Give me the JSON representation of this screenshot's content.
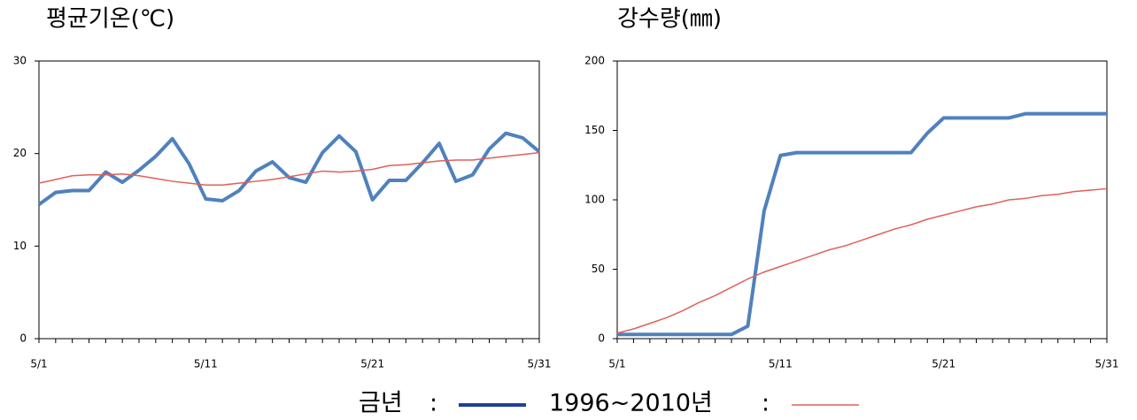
{
  "chart_data": [
    {
      "type": "line",
      "title": "평균기온(℃)",
      "categories": [
        "5/1",
        null,
        null,
        null,
        null,
        null,
        null,
        null,
        null,
        null,
        "5/11",
        null,
        null,
        null,
        null,
        null,
        null,
        null,
        null,
        null,
        "5/21",
        null,
        null,
        null,
        null,
        null,
        null,
        null,
        null,
        null,
        "5/31"
      ],
      "series": [
        {
          "name": "금년",
          "color": "#4f81bd",
          "values": [
            14.5,
            15.8,
            16.0,
            16.0,
            18.0,
            16.9,
            18.2,
            19.7,
            21.6,
            18.9,
            15.1,
            14.9,
            16.0,
            18.1,
            19.1,
            17.4,
            16.9,
            20.1,
            21.9,
            20.2,
            15.0,
            17.1,
            17.1,
            19.0,
            21.1,
            17.0,
            17.7,
            20.5,
            22.2,
            21.7,
            20.2
          ]
        },
        {
          "name": "1996~2010년",
          "color": "#e0605a",
          "values": [
            16.8,
            17.2,
            17.6,
            17.7,
            17.7,
            17.8,
            17.6,
            17.3,
            17.0,
            16.8,
            16.6,
            16.6,
            16.8,
            17.0,
            17.2,
            17.5,
            17.8,
            18.1,
            18.0,
            18.1,
            18.3,
            18.7,
            18.8,
            19.0,
            19.2,
            19.3,
            19.3,
            19.5,
            19.7,
            19.9,
            20.1
          ]
        }
      ],
      "ylim": [
        0,
        30
      ],
      "yticks": [
        0,
        10,
        20,
        30
      ],
      "grid": false
    },
    {
      "type": "line",
      "title": "강수량(㎜)",
      "categories": [
        "5/1",
        null,
        null,
        null,
        null,
        null,
        null,
        null,
        null,
        null,
        "5/11",
        null,
        null,
        null,
        null,
        null,
        null,
        null,
        null,
        null,
        "5/21",
        null,
        null,
        null,
        null,
        null,
        null,
        null,
        null,
        null,
        "5/31"
      ],
      "series": [
        {
          "name": "금년",
          "color": "#4f81bd",
          "values": [
            3,
            3,
            3,
            3,
            3,
            3,
            3,
            3,
            9,
            92,
            132,
            134,
            134,
            134,
            134,
            134,
            134,
            134,
            134,
            148,
            159,
            159,
            159,
            159,
            159,
            162,
            162,
            162,
            162,
            162,
            162
          ]
        },
        {
          "name": "1996~2010년",
          "color": "#e0605a",
          "values": [
            4,
            7,
            11,
            15,
            20,
            26,
            31,
            37,
            43,
            48,
            52,
            56,
            60,
            64,
            67,
            71,
            75,
            79,
            82,
            86,
            89,
            92,
            95,
            97,
            100,
            101,
            103,
            104,
            106,
            107,
            108
          ]
        }
      ],
      "ylim": [
        0,
        200
      ],
      "yticks": [
        0,
        50,
        100,
        150,
        200
      ],
      "grid": false
    }
  ],
  "legend_separator": ":"
}
